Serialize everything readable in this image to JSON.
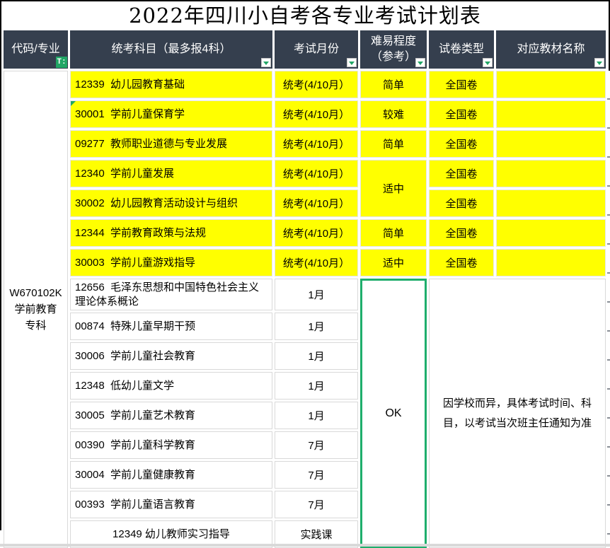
{
  "title": "2022年四川小自考各专业考试计划表",
  "header": {
    "columns": [
      {
        "label": "代码/专业",
        "icon": "filter-applied-icon"
      },
      {
        "label": "统考科目（最多报4科）",
        "icon": "filter-dropdown-icon"
      },
      {
        "label": "考试月份",
        "icon": "filter-dropdown-icon"
      },
      {
        "label": "难易程度（参考）",
        "icon": "filter-dropdown-icon"
      },
      {
        "label": "试卷类型",
        "icon": "filter-dropdown-icon"
      },
      {
        "label": "对应教材名称",
        "icon": "filter-dropdown-icon"
      }
    ],
    "filter_icon_glyph": "T:"
  },
  "major": {
    "code": "W670102K 学前教育 专科"
  },
  "rows": [
    {
      "subject": "12339  幼儿园教育基础",
      "month": "统考(4/10月）",
      "difficulty": "简单",
      "paper": "全国卷",
      "textbook": "",
      "highlight": true
    },
    {
      "subject": "30001  学前儿童保育学",
      "month": "统考(4/10月）",
      "difficulty": "较难",
      "paper": "全国卷",
      "textbook": "",
      "highlight": true,
      "comment": true
    },
    {
      "subject": "09277  教师职业道德与专业发展",
      "month": "统考(4/10月）",
      "difficulty": "简单",
      "paper": "全国卷",
      "textbook": "",
      "highlight": true
    },
    {
      "subject": "12340  学前儿童发展",
      "month": "统考(4/10月）",
      "difficulty": "适中",
      "difficulty_rowspan": 2,
      "paper": "全国卷",
      "textbook": "",
      "highlight": true
    },
    {
      "subject": "30002  幼儿园教育活动设计与组织",
      "month": "统考(4/10月）",
      "difficulty": null,
      "paper": "全国卷",
      "textbook": "",
      "highlight": true
    },
    {
      "subject": "12344  学前教育政策与法规",
      "month": "统考(4/10月）",
      "difficulty": "简单",
      "paper": "全国卷",
      "textbook": "",
      "highlight": true
    },
    {
      "subject": "30003  学前儿童游戏指导",
      "month": "统考(4/10月）",
      "difficulty": "适中",
      "paper": "全国卷",
      "textbook": "",
      "highlight": true
    },
    {
      "subject": "12656  毛泽东思想和中国特色社会主义理论体系概论",
      "month": "1月",
      "highlight": false,
      "first_school_row": true
    },
    {
      "subject": "00874  特殊儿童早期干预",
      "month": "1月",
      "highlight": false
    },
    {
      "subject": "30006  学前儿童社会教育",
      "month": "1月",
      "highlight": false
    },
    {
      "subject": "12348  低幼儿童文学",
      "month": "1月",
      "highlight": false
    },
    {
      "subject": "30005  学前儿童艺术教育",
      "month": "1月",
      "highlight": false
    },
    {
      "subject": "00390  学前儿童科学教育",
      "month": "7月",
      "highlight": false
    },
    {
      "subject": "30004  学前儿童健康教育",
      "month": "7月",
      "highlight": false
    },
    {
      "subject": "00393  学前儿童语言教育",
      "month": "7月",
      "highlight": false
    },
    {
      "subject": "12349 幼儿教师实习指导",
      "month": "实践课",
      "highlight": false,
      "center_subject": true
    }
  ],
  "school_block": {
    "status": "OK",
    "note": "因学校而异，具体考试时间、科目，以考试当次班主任通知为准"
  },
  "colors": {
    "header_bg": "#353F4E",
    "highlight_yellow": "#FFFF00",
    "selection_green": "#1FAE6C",
    "icon_green": "#21A665",
    "grid_line": "#D9D9D9"
  }
}
